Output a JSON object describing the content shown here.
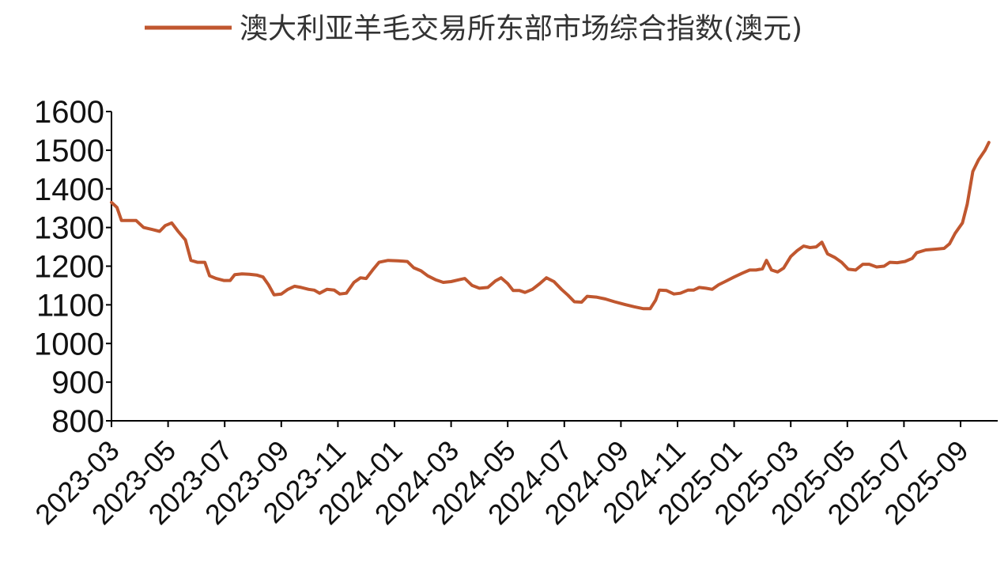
{
  "chart_data": {
    "type": "line",
    "title": "",
    "xlabel": "",
    "ylabel": "",
    "ylim": [
      800,
      1600
    ],
    "yticks": [
      800,
      900,
      1000,
      1100,
      1200,
      1300,
      1400,
      1500,
      1600
    ],
    "x_tick_labels": [
      "2023-03",
      "2023-05",
      "2023-07",
      "2023-09",
      "2023-11",
      "2024-01",
      "2024-03",
      "2024-05",
      "2024-07",
      "2024-09",
      "2024-11",
      "2025-01",
      "2025-03",
      "2025-05",
      "2025-07",
      "2025-09"
    ],
    "x_range": [
      "2023-03",
      "2025-10"
    ],
    "grid": false,
    "legend_position": "top",
    "color": "#C0572F",
    "series": [
      {
        "name": "澳大利亚羊毛交易所东部市场综合指数(澳元)",
        "points": [
          [
            "2023-03-01",
            1365
          ],
          [
            "2023-03-07",
            1352
          ],
          [
            "2023-03-12",
            1318
          ],
          [
            "2023-03-20",
            1318
          ],
          [
            "2023-03-28",
            1318
          ],
          [
            "2023-04-05",
            1300
          ],
          [
            "2023-04-14",
            1295
          ],
          [
            "2023-04-22",
            1290
          ],
          [
            "2023-04-28",
            1305
          ],
          [
            "2023-05-05",
            1312
          ],
          [
            "2023-05-12",
            1290
          ],
          [
            "2023-05-20",
            1268
          ],
          [
            "2023-05-26",
            1215
          ],
          [
            "2023-06-02",
            1210
          ],
          [
            "2023-06-10",
            1210
          ],
          [
            "2023-06-15",
            1175
          ],
          [
            "2023-06-22",
            1168
          ],
          [
            "2023-06-30",
            1163
          ],
          [
            "2023-07-07",
            1163
          ],
          [
            "2023-07-12",
            1178
          ],
          [
            "2023-07-20",
            1180
          ],
          [
            "2023-07-28",
            1179
          ],
          [
            "2023-08-05",
            1177
          ],
          [
            "2023-08-12",
            1172
          ],
          [
            "2023-08-18",
            1152
          ],
          [
            "2023-08-24",
            1126
          ],
          [
            "2023-09-01",
            1128
          ],
          [
            "2023-09-08",
            1140
          ],
          [
            "2023-09-15",
            1148
          ],
          [
            "2023-09-22",
            1145
          ],
          [
            "2023-09-30",
            1140
          ],
          [
            "2023-10-06",
            1138
          ],
          [
            "2023-10-12",
            1130
          ],
          [
            "2023-10-20",
            1140
          ],
          [
            "2023-10-28",
            1138
          ],
          [
            "2023-11-03",
            1128
          ],
          [
            "2023-11-10",
            1130
          ],
          [
            "2023-11-18",
            1158
          ],
          [
            "2023-11-25",
            1170
          ],
          [
            "2023-12-01",
            1168
          ],
          [
            "2023-12-08",
            1190
          ],
          [
            "2023-12-15",
            1210
          ],
          [
            "2023-12-25",
            1215
          ],
          [
            "2024-01-05",
            1214
          ],
          [
            "2024-01-15",
            1212
          ],
          [
            "2024-01-22",
            1196
          ],
          [
            "2024-01-30",
            1188
          ],
          [
            "2024-02-06",
            1175
          ],
          [
            "2024-02-14",
            1165
          ],
          [
            "2024-02-22",
            1158
          ],
          [
            "2024-03-01",
            1160
          ],
          [
            "2024-03-10",
            1165
          ],
          [
            "2024-03-16",
            1168
          ],
          [
            "2024-03-24",
            1150
          ],
          [
            "2024-04-01",
            1143
          ],
          [
            "2024-04-10",
            1145
          ],
          [
            "2024-04-18",
            1162
          ],
          [
            "2024-04-24",
            1170
          ],
          [
            "2024-05-01",
            1155
          ],
          [
            "2024-05-07",
            1137
          ],
          [
            "2024-05-14",
            1137
          ],
          [
            "2024-05-20",
            1132
          ],
          [
            "2024-05-28",
            1140
          ],
          [
            "2024-06-05",
            1155
          ],
          [
            "2024-06-12",
            1170
          ],
          [
            "2024-06-20",
            1160
          ],
          [
            "2024-06-28",
            1140
          ],
          [
            "2024-07-05",
            1125
          ],
          [
            "2024-07-12",
            1108
          ],
          [
            "2024-07-20",
            1107
          ],
          [
            "2024-07-26",
            1122
          ],
          [
            "2024-08-05",
            1120
          ],
          [
            "2024-08-15",
            1115
          ],
          [
            "2024-08-25",
            1108
          ],
          [
            "2024-09-05",
            1101
          ],
          [
            "2024-09-15",
            1095
          ],
          [
            "2024-09-25",
            1090
          ],
          [
            "2024-10-02",
            1090
          ],
          [
            "2024-10-08",
            1112
          ],
          [
            "2024-10-12",
            1138
          ],
          [
            "2024-10-20",
            1137
          ],
          [
            "2024-10-28",
            1128
          ],
          [
            "2024-11-04",
            1130
          ],
          [
            "2024-11-12",
            1138
          ],
          [
            "2024-11-18",
            1138
          ],
          [
            "2024-11-24",
            1145
          ],
          [
            "2024-12-01",
            1143
          ],
          [
            "2024-12-08",
            1140
          ],
          [
            "2024-12-15",
            1152
          ],
          [
            "2024-12-22",
            1160
          ],
          [
            "2025-01-01",
            1172
          ],
          [
            "2025-01-10",
            1182
          ],
          [
            "2025-01-18",
            1190
          ],
          [
            "2025-01-25",
            1190
          ],
          [
            "2025-02-01",
            1193
          ],
          [
            "2025-02-05",
            1215
          ],
          [
            "2025-02-10",
            1190
          ],
          [
            "2025-02-16",
            1185
          ],
          [
            "2025-02-22",
            1195
          ],
          [
            "2025-03-01",
            1225
          ],
          [
            "2025-03-08",
            1240
          ],
          [
            "2025-03-15",
            1252
          ],
          [
            "2025-03-22",
            1248
          ],
          [
            "2025-03-29",
            1250
          ],
          [
            "2025-04-04",
            1262
          ],
          [
            "2025-04-10",
            1232
          ],
          [
            "2025-04-18",
            1222
          ],
          [
            "2025-04-25",
            1210
          ],
          [
            "2025-05-02",
            1192
          ],
          [
            "2025-05-10",
            1190
          ],
          [
            "2025-05-18",
            1205
          ],
          [
            "2025-05-25",
            1205
          ],
          [
            "2025-06-02",
            1198
          ],
          [
            "2025-06-10",
            1200
          ],
          [
            "2025-06-16",
            1210
          ],
          [
            "2025-06-24",
            1209
          ],
          [
            "2025-07-02",
            1212
          ],
          [
            "2025-07-10",
            1220
          ],
          [
            "2025-07-15",
            1235
          ],
          [
            "2025-07-25",
            1242
          ],
          [
            "2025-08-05",
            1244
          ],
          [
            "2025-08-14",
            1246
          ],
          [
            "2025-08-20",
            1258
          ],
          [
            "2025-08-26",
            1285
          ],
          [
            "2025-09-03",
            1312
          ],
          [
            "2025-09-08",
            1360
          ],
          [
            "2025-09-14",
            1445
          ],
          [
            "2025-09-20",
            1475
          ],
          [
            "2025-09-27",
            1500
          ],
          [
            "2025-10-01",
            1520
          ]
        ]
      }
    ]
  }
}
